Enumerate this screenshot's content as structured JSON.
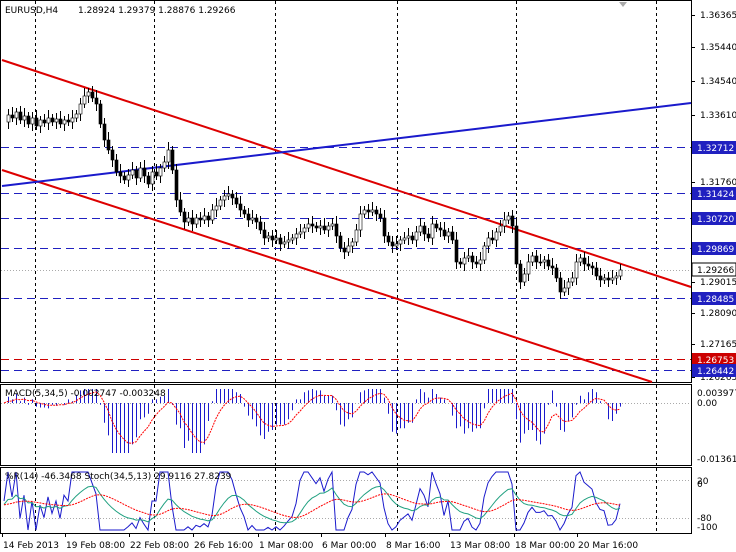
{
  "header": {
    "symbol_timeframe": "EURUSD,H4",
    "ohlc": "1.28924 1.29379 1.28876 1.29266"
  },
  "main_axis": {
    "ticks": [
      "1.36365",
      "1.35440",
      "1.34540",
      "1.33610",
      "1.31760",
      "1.30780",
      "1.29015",
      "1.28090",
      "1.27165",
      "1.26265"
    ]
  },
  "levels": [
    {
      "label": "1.32712",
      "value": 1.32712,
      "color": "#2020c0"
    },
    {
      "label": "1.31424",
      "value": 1.31424,
      "color": "#2020c0"
    },
    {
      "label": "1.30720",
      "value": 1.3072,
      "color": "#2020c0"
    },
    {
      "label": "1.29869",
      "value": 1.29869,
      "color": "#2020c0"
    },
    {
      "label": "1.28485",
      "value": 1.28485,
      "color": "#2020c0"
    },
    {
      "label": "1.26753",
      "value": 1.26753,
      "color": "#cc0000"
    },
    {
      "label": "1.26442",
      "value": 1.26442,
      "color": "#2020c0"
    }
  ],
  "current_price": {
    "label": "1.29266",
    "value": 1.29266
  },
  "macd": {
    "title": "MACD(5,34,5) -0.002747 -0.003248",
    "ticks": [
      "0.003977",
      "0.00",
      "-0.013619"
    ]
  },
  "stoch": {
    "title": "%R(14) -46.3468  Stoch(34,5,13) 29.9116 27.8239",
    "ticks": [
      "20",
      "0",
      "-80",
      "-100"
    ]
  },
  "x_axis": {
    "labels": [
      "14 Feb 2013",
      "19 Feb 08:00",
      "22 Feb 08:00",
      "26 Feb 16:00",
      "1 Mar 08:00",
      "6 Mar 00:00",
      "8 Mar 16:00",
      "13 Mar 08:00",
      "18 Mar 00:00",
      "20 Mar 16:00"
    ]
  },
  "colors": {
    "bull_candle": "#ffffff",
    "bear_candle": "#000000",
    "channel": "#dd0000",
    "trendline": "#1a1acc",
    "macd_bars": "#1a1acc",
    "macd_signal": "#ff0000"
  }
}
